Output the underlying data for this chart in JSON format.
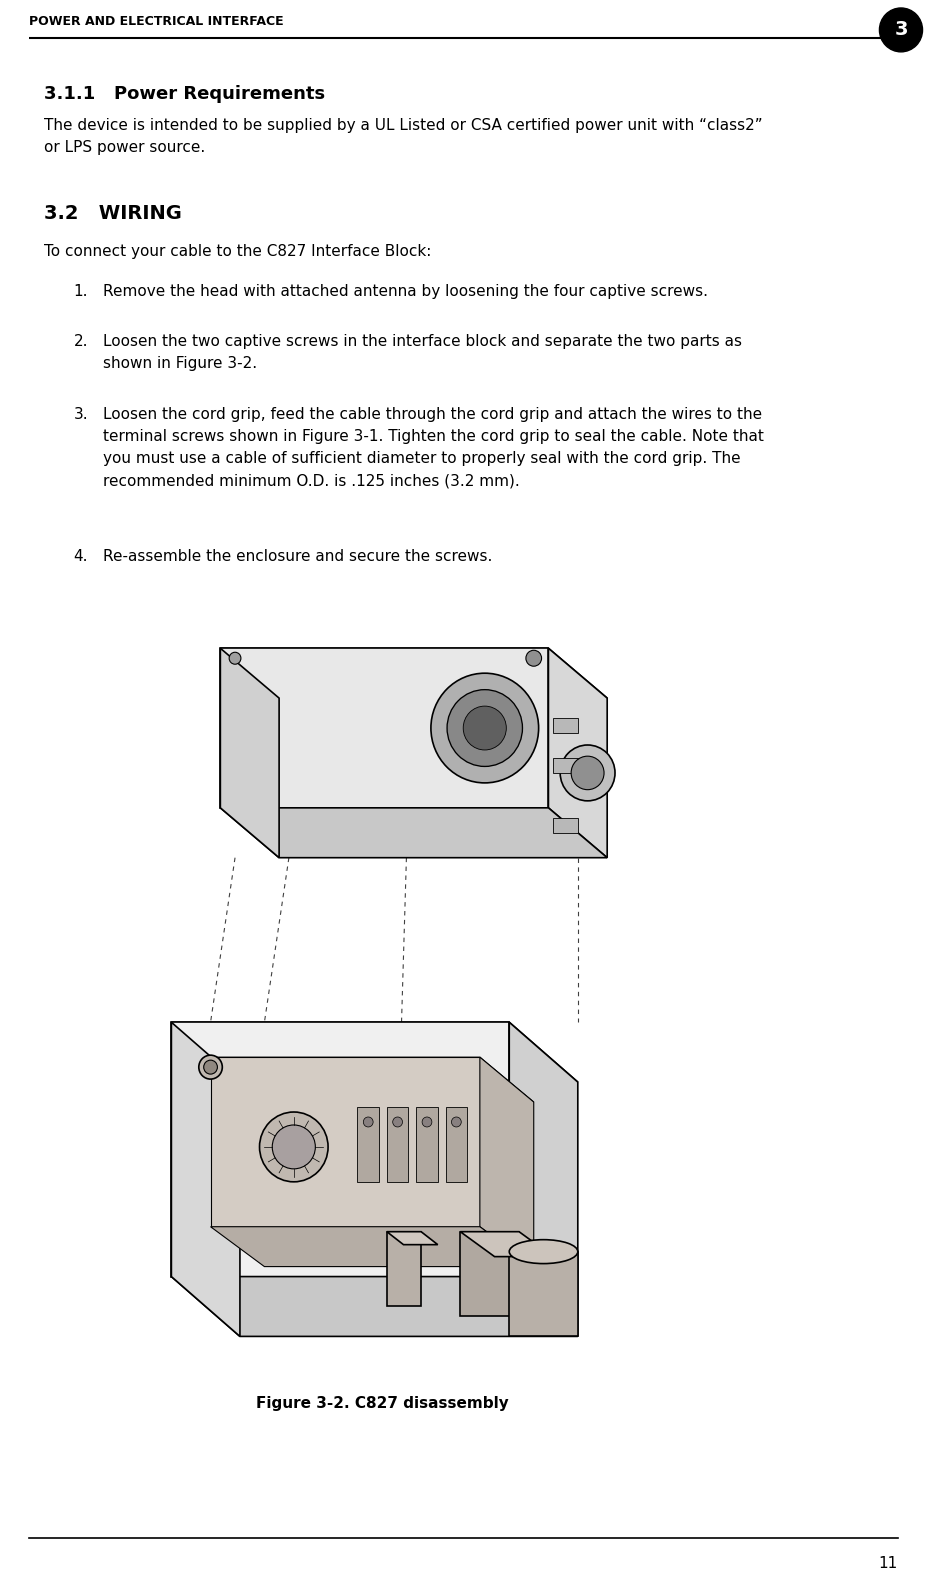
{
  "page_title": "POWER AND ELECTRICAL INTERFACE",
  "chapter_num": "3",
  "page_num": "11",
  "section_311_title": "3.1.1   Power Requirements",
  "section_311_body": "The device is intended to be supplied by a UL Listed or CSA certified power unit with “class2”\nor LPS power source.",
  "section_32_title": "3.2   WIRING",
  "section_32_intro": "To connect your cable to the C827 Interface Block:",
  "item1": "Remove the head with attached antenna by loosening the four captive screws.",
  "item2": "Loosen the two captive screws in the interface block and separate the two parts as\nshown in Figure 3-2.",
  "item3": "Loosen the cord grip, feed the cable through the cord grip and attach the wires to the\nterminal screws shown in Figure 3-1. Tighten the cord grip to seal the cable. Note that\nyou must use a cable of sufficient diameter to properly seal with the cord grip. The\nrecommended minimum O.D. is .125 inches (3.2 mm).",
  "item4": "Re-assemble the enclosure and secure the screws.",
  "figure_caption": "Figure 3-2. C827 disassembly",
  "bg_color": "#ffffff",
  "text_color": "#000000",
  "header_line_color": "#000000",
  "footer_line_color": "#000000"
}
